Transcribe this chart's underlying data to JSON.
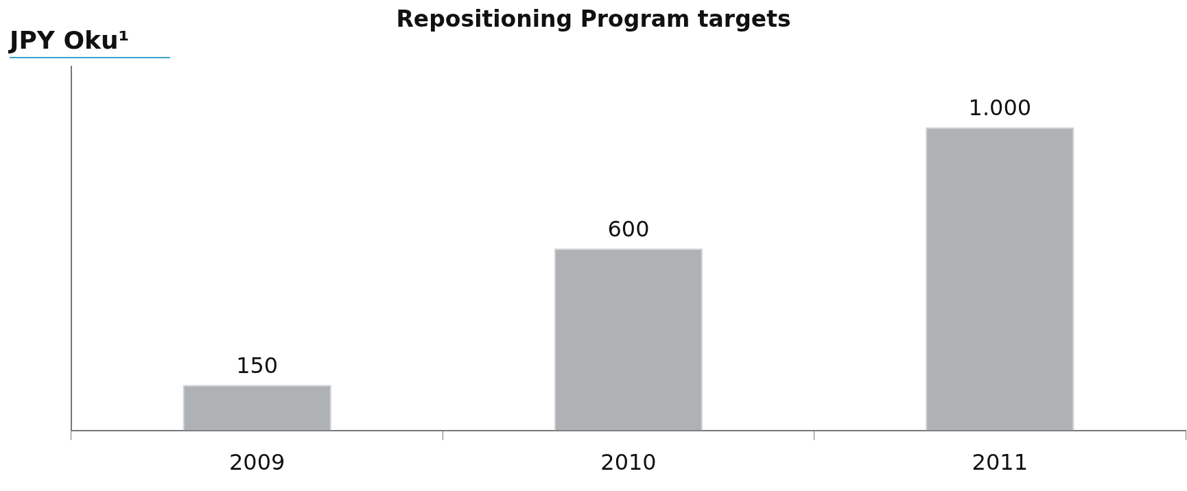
{
  "chart_data": {
    "type": "bar",
    "title": "Repositioning Program targets",
    "ylabel": "JPY Oku¹",
    "categories": [
      "2009",
      "2010",
      "2011"
    ],
    "values": [
      150,
      600,
      1000
    ],
    "value_labels": [
      "150",
      "600",
      "1.000"
    ],
    "color": "#afb2b5",
    "tick_labels": "x",
    "grid": false,
    "legend": false
  }
}
